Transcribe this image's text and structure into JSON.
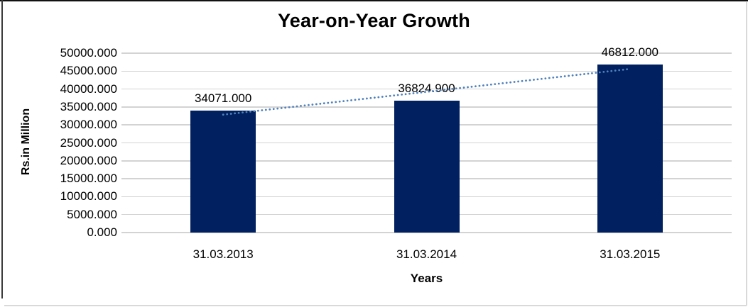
{
  "chart_data": {
    "type": "bar",
    "title": "Year-on-Year Growth",
    "xlabel": "Years",
    "ylabel": "Rs.in Million",
    "categories": [
      "31.03.2013",
      "31.03.2014",
      "31.03.2015"
    ],
    "values": [
      34071.0,
      36824.9,
      46812.0
    ],
    "value_labels": [
      "34071.000",
      "36824.900",
      "46812.000"
    ],
    "ylim": [
      0,
      50000
    ],
    "ytick_interval": 5000,
    "ytick_labels": [
      "0.000",
      "5000.000",
      "10000.000",
      "15000.000",
      "20000.000",
      "25000.000",
      "30000.000",
      "35000.000",
      "40000.000",
      "45000.000",
      "50000.000"
    ],
    "grid": "horizontal",
    "legend": "none",
    "trendline": {
      "type": "linear",
      "style": "dotted"
    },
    "colors": {
      "bar": "#002060",
      "trendline": "#4f81bd",
      "gridline": "#d3d3d3",
      "text": "#000000",
      "background": "#ffffff",
      "chart_border": "#d9d9d9",
      "frame_top": "#111111",
      "frame_left": "#3a3a3a"
    }
  }
}
